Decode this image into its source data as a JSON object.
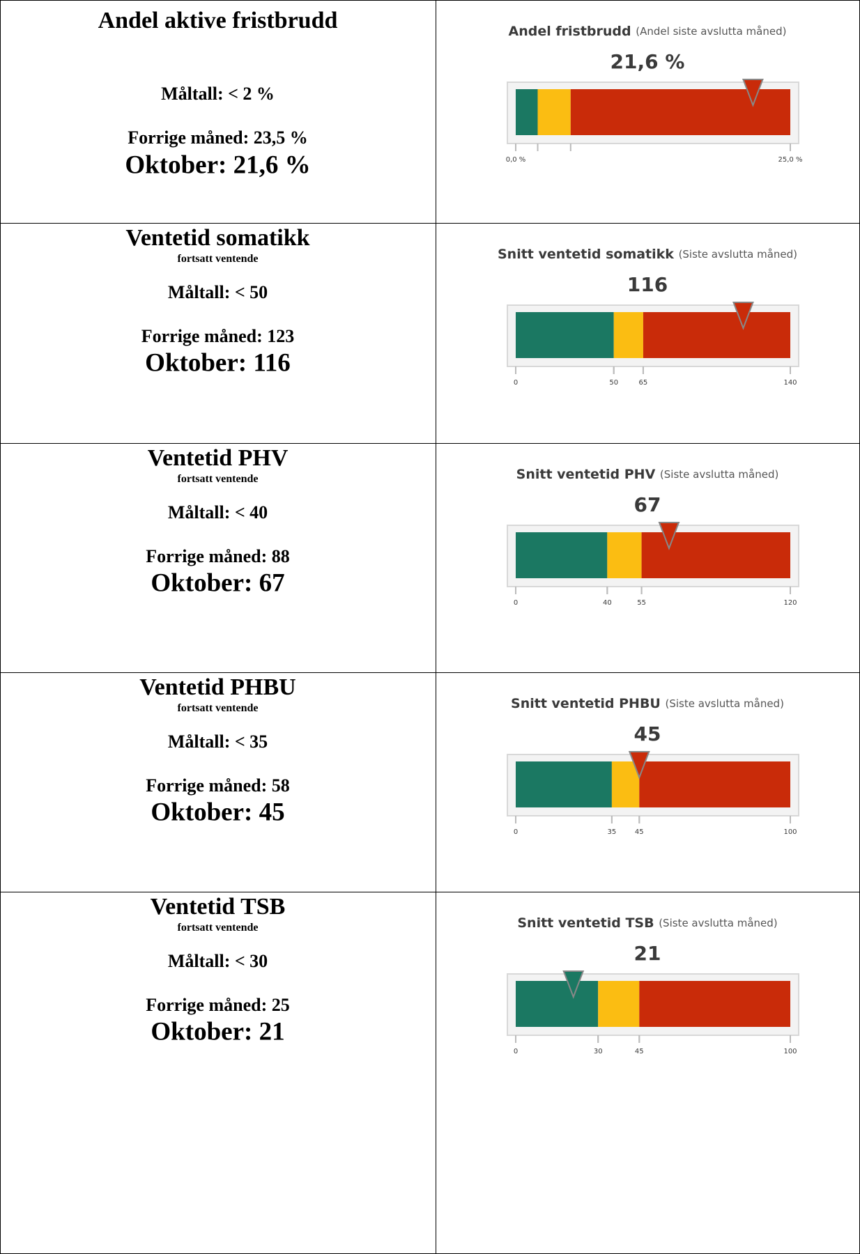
{
  "rows": [
    {
      "title": "Andel aktive fristbrudd",
      "target": "Måltall: < 2 %",
      "previous": "Forrige måned: 23,5 %",
      "current": "Oktober: 21,6 %",
      "gauge": {
        "type": "bullet",
        "title": "Andel fristbrudd",
        "subtitle": "(Andel siste avslutta måned)",
        "value": 21.6,
        "value_label": "21,6 %",
        "xlim": [
          0,
          25
        ],
        "bands": [
          2,
          5
        ],
        "colors": [
          "#1b7862",
          "#fbbd12",
          "#c92b09"
        ],
        "xticks": [
          {
            "value": 0,
            "label": "0,0 %"
          },
          {
            "value": 25,
            "label": "25,0 %"
          }
        ]
      }
    },
    {
      "title": "Ventetid somatikk",
      "subtitle": "fortsatt ventende",
      "target": "Måltall: < 50",
      "previous": "Forrige måned: 123",
      "current": "Oktober: 116",
      "gauge": {
        "type": "bullet",
        "title": "Snitt ventetid somatikk",
        "subtitle": "(Siste avslutta måned)",
        "value": 116,
        "xlim": [
          0,
          140
        ],
        "bands": [
          50,
          65
        ],
        "colors": [
          "#1b7862",
          "#fbbd12",
          "#c92b09"
        ],
        "xticks": [
          0,
          50,
          65,
          140
        ]
      }
    },
    {
      "title": "Ventetid PHV",
      "subtitle": "fortsatt ventende",
      "target": "Måltall: < 40",
      "previous": "Forrige måned: 88",
      "current": "Oktober: 67",
      "gauge": {
        "type": "bullet",
        "title": "Snitt ventetid PHV",
        "subtitle": "(Siste avslutta måned)",
        "value": 67,
        "xlim": [
          0,
          120
        ],
        "bands": [
          40,
          55
        ],
        "colors": [
          "#1b7862",
          "#fbbd12",
          "#c92b09"
        ],
        "xticks": [
          0,
          40,
          55,
          120
        ]
      }
    },
    {
      "title": "Ventetid PHBU",
      "subtitle": "fortsatt ventende",
      "target": "Måltall: < 35",
      "previous": "Forrige måned: 58",
      "current": "Oktober: 45",
      "gauge": {
        "type": "bullet",
        "title": "Snitt ventetid PHBU",
        "subtitle": "(Siste avslutta måned)",
        "value": 45,
        "xlim": [
          0,
          100
        ],
        "bands": [
          35,
          45
        ],
        "colors": [
          "#1b7862",
          "#fbbd12",
          "#c92b09"
        ],
        "xticks": [
          0,
          35,
          45,
          100
        ]
      }
    },
    {
      "title": "Ventetid TSB",
      "subtitle": "fortsatt ventende",
      "target": "Måltall: < 30",
      "previous": "Forrige måned: 25",
      "current": "Oktober: 21",
      "gauge": {
        "type": "bullet",
        "title": "Snitt ventetid TSB",
        "subtitle": "(Siste avslutta måned)",
        "value": 21,
        "xlim": [
          0,
          100
        ],
        "bands": [
          30,
          45
        ],
        "colors": [
          "#1b7862",
          "#fbbd12",
          "#c92b09"
        ],
        "xticks": [
          0,
          30,
          45,
          100
        ]
      }
    }
  ]
}
